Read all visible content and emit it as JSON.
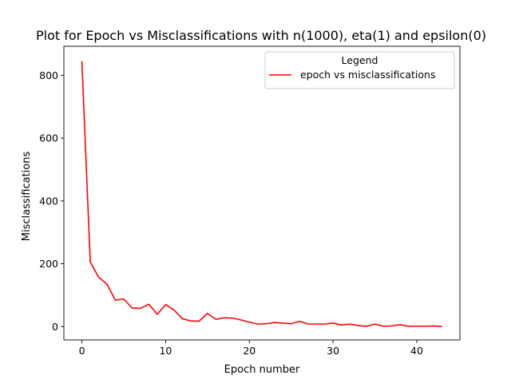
{
  "chart_data": {
    "type": "line",
    "title": "Plot for Epoch vs Misclassifications with n(1000), eta(1) and epsilon(0)",
    "xlabel": "Epoch number",
    "ylabel": "Misclassifications",
    "xlim": [
      -2.15,
      45.15
    ],
    "ylim": [
      -42.5,
      892.5
    ],
    "xticks": [
      0,
      10,
      20,
      30,
      40
    ],
    "yticks": [
      0,
      200,
      400,
      600,
      800
    ],
    "grid": false,
    "legend": {
      "title": "Legend",
      "placement": "top-right",
      "entries": [
        "epoch vs misclassifications"
      ]
    },
    "series": [
      {
        "name": "epoch vs misclassifications",
        "color": "#ff0000",
        "x": [
          0,
          1,
          2,
          3,
          4,
          5,
          6,
          7,
          8,
          9,
          10,
          11,
          12,
          13,
          14,
          15,
          16,
          17,
          18,
          19,
          20,
          21,
          22,
          23,
          24,
          25,
          26,
          27,
          28,
          29,
          30,
          31,
          32,
          33,
          34,
          35,
          36,
          37,
          38,
          39,
          40,
          41,
          42,
          43
        ],
        "y": [
          845,
          206,
          157,
          135,
          84,
          88,
          59,
          58,
          71,
          39,
          70,
          53,
          25,
          18,
          17,
          42,
          23,
          28,
          27,
          21,
          14,
          8,
          9,
          13,
          11,
          9,
          17,
          8,
          8,
          8,
          11,
          5,
          8,
          3,
          1,
          8,
          1,
          2,
          6,
          1,
          1,
          1,
          2,
          0
        ]
      }
    ]
  }
}
